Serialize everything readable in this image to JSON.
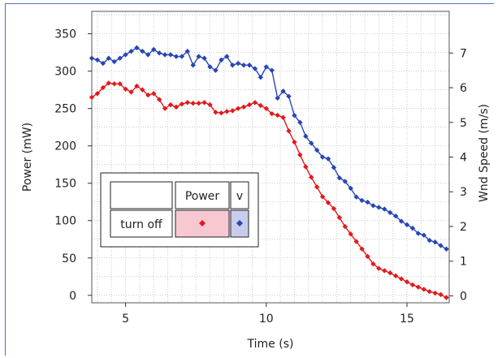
{
  "chart_data": {
    "type": "line",
    "xlabel": "Time (s)",
    "ylabel": "Power (mW)",
    "y2label": "Wnd Speed (m/s)",
    "xlim": [
      3.8,
      16.5
    ],
    "ylim": [
      -10,
      380
    ],
    "y2lim": [
      -0.2,
      8.2
    ],
    "xticks": [
      5,
      10,
      15
    ],
    "yticks": [
      0,
      50,
      100,
      150,
      200,
      250,
      300,
      350
    ],
    "y2ticks": [
      0,
      1,
      2,
      3,
      4,
      5,
      6,
      7
    ],
    "grid": true,
    "series": [
      {
        "name": "Power",
        "axis": "left",
        "color": "#e31a1c",
        "marker": "diamond",
        "x": [
          3.8,
          4.0,
          4.2,
          4.4,
          4.6,
          4.8,
          5.0,
          5.2,
          5.4,
          5.6,
          5.8,
          6.0,
          6.2,
          6.4,
          6.6,
          6.8,
          7.0,
          7.2,
          7.4,
          7.6,
          7.8,
          8.0,
          8.2,
          8.4,
          8.6,
          8.8,
          9.0,
          9.2,
          9.4,
          9.6,
          9.8,
          10.0,
          10.2,
          10.4,
          10.6,
          10.8,
          11.0,
          11.2,
          11.4,
          11.6,
          11.8,
          12.0,
          12.2,
          12.4,
          12.6,
          12.8,
          13.0,
          13.2,
          13.4,
          13.6,
          13.8,
          14.0,
          14.2,
          14.4,
          14.6,
          14.8,
          15.0,
          15.2,
          15.4,
          15.6,
          15.8,
          16.0,
          16.2,
          16.4
        ],
        "y": [
          265,
          270,
          278,
          284,
          283,
          283,
          276,
          272,
          280,
          275,
          268,
          270,
          262,
          250,
          255,
          252,
          256,
          258,
          257,
          257,
          258,
          255,
          245,
          244,
          246,
          247,
          250,
          252,
          255,
          258,
          254,
          250,
          243,
          241,
          238,
          220,
          205,
          188,
          172,
          158,
          145,
          132,
          124,
          116,
          104,
          92,
          82,
          72,
          62,
          52,
          42,
          36,
          33,
          30,
          26,
          22,
          18,
          14,
          11,
          8,
          5,
          3,
          1,
          -3
        ]
      },
      {
        "name": "v",
        "axis": "right",
        "color": "#2846b4",
        "marker": "diamond",
        "x": [
          3.8,
          4.0,
          4.2,
          4.4,
          4.6,
          4.8,
          5.0,
          5.2,
          5.4,
          5.6,
          5.8,
          6.0,
          6.2,
          6.4,
          6.6,
          6.8,
          7.0,
          7.2,
          7.4,
          7.6,
          7.8,
          8.0,
          8.2,
          8.4,
          8.6,
          8.8,
          9.0,
          9.2,
          9.4,
          9.6,
          9.8,
          10.0,
          10.2,
          10.4,
          10.6,
          10.8,
          11.0,
          11.2,
          11.4,
          11.6,
          11.8,
          12.0,
          12.2,
          12.4,
          12.6,
          12.8,
          13.0,
          13.2,
          13.4,
          13.6,
          13.8,
          14.0,
          14.2,
          14.4,
          14.6,
          14.8,
          15.0,
          15.2,
          15.4,
          15.6,
          15.8,
          16.0,
          16.2,
          16.4
        ],
        "y": [
          6.85,
          6.8,
          6.7,
          6.85,
          6.75,
          6.85,
          6.95,
          7.05,
          7.15,
          7.05,
          6.95,
          7.1,
          7.0,
          6.95,
          6.95,
          6.9,
          6.9,
          7.05,
          6.65,
          6.9,
          6.85,
          6.6,
          6.5,
          6.8,
          6.9,
          6.65,
          6.7,
          6.65,
          6.65,
          6.55,
          6.3,
          6.6,
          6.5,
          5.7,
          5.9,
          5.75,
          5.2,
          5.0,
          4.6,
          4.4,
          4.2,
          4.0,
          3.95,
          3.7,
          3.4,
          3.3,
          3.1,
          2.85,
          2.75,
          2.7,
          2.6,
          2.55,
          2.5,
          2.4,
          2.3,
          2.15,
          2.05,
          1.95,
          1.8,
          1.75,
          1.6,
          1.55,
          1.45,
          1.35
        ]
      }
    ],
    "legend": {
      "placement": "bottom-left",
      "header": [
        "",
        "Power",
        "v"
      ],
      "row_label": "turn off",
      "cell_colors": [
        "#f7c8d2",
        "#c7cdea"
      ]
    }
  }
}
